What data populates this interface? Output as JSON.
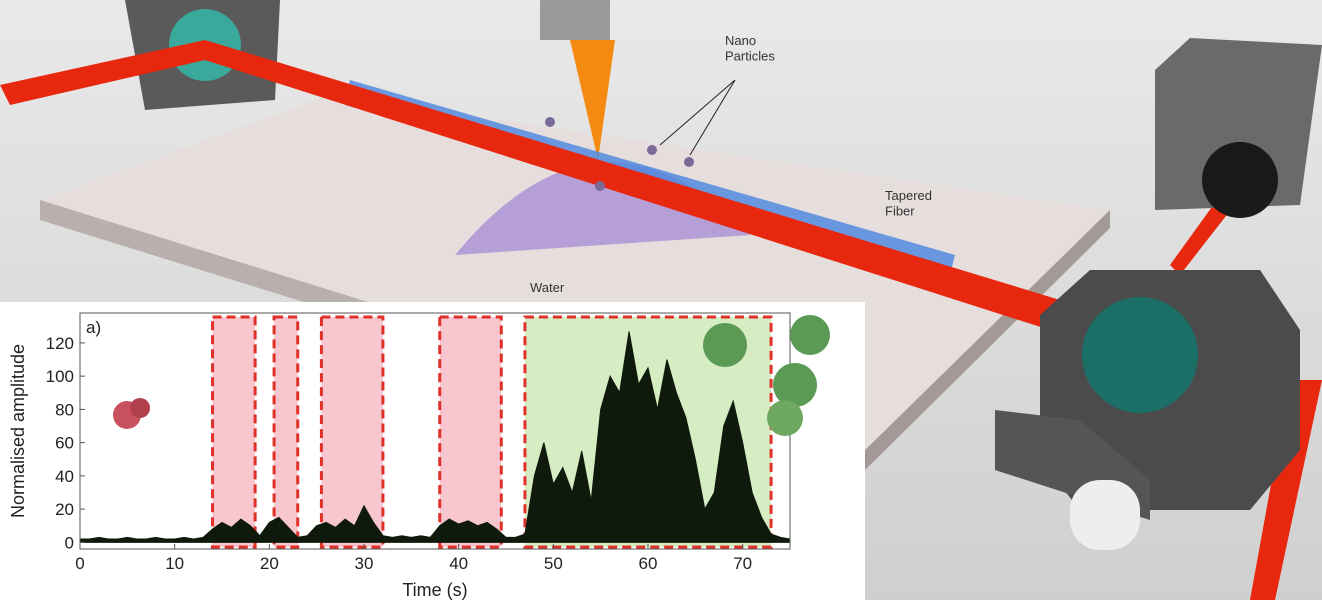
{
  "labels": {
    "nano": "Nano\nParticles",
    "fiber": "Tapered\nFiber",
    "water": "Water"
  },
  "chart_data": {
    "type": "area",
    "panel_label": "a)",
    "xlabel": "Time (s)",
    "ylabel": "Normalised amplitude",
    "xlim": [
      0,
      75
    ],
    "ylim": [
      -4,
      138
    ],
    "xticks": [
      0,
      10,
      20,
      30,
      40,
      50,
      60,
      70
    ],
    "yticks": [
      0,
      20,
      40,
      60,
      80,
      100,
      120
    ],
    "regions": [
      {
        "start": 14,
        "end": 18.5,
        "color": "#f7c6cf"
      },
      {
        "start": 20.5,
        "end": 23,
        "color": "#f7c6cf"
      },
      {
        "start": 25.5,
        "end": 32,
        "color": "#f7c6cf"
      },
      {
        "start": 38,
        "end": 44.5,
        "color": "#f7c6cf"
      },
      {
        "start": 47,
        "end": 73,
        "color": "#d6edc3"
      }
    ],
    "series": [
      {
        "color": "#0f1a0c",
        "x": [
          0,
          1,
          2,
          3,
          4,
          5,
          6,
          7,
          8,
          9,
          10,
          11,
          12,
          13,
          14,
          15,
          16,
          17,
          18,
          19,
          20,
          21,
          22,
          23,
          24,
          25,
          26,
          27,
          28,
          29,
          30,
          31,
          32,
          33,
          34,
          35,
          36,
          37,
          38,
          39,
          40,
          41,
          42,
          43,
          44,
          45,
          46,
          47,
          48,
          49,
          50,
          51,
          52,
          53,
          54,
          55,
          56,
          57,
          58,
          59,
          60,
          61,
          62,
          63,
          64,
          65,
          66,
          67,
          68,
          69,
          70,
          71,
          72,
          73,
          74,
          75
        ],
        "values": [
          2,
          2,
          3,
          2,
          2,
          3,
          2,
          2,
          3,
          2,
          2,
          3,
          2,
          3,
          8,
          12,
          9,
          14,
          10,
          4,
          12,
          15,
          9,
          3,
          4,
          10,
          12,
          9,
          14,
          10,
          22,
          12,
          4,
          3,
          4,
          3,
          4,
          3,
          10,
          14,
          11,
          13,
          10,
          12,
          8,
          3,
          3,
          5,
          40,
          60,
          35,
          45,
          30,
          55,
          25,
          80,
          100,
          90,
          127,
          95,
          105,
          80,
          110,
          90,
          75,
          50,
          20,
          30,
          70,
          85,
          60,
          30,
          15,
          5,
          3,
          2
        ]
      }
    ]
  }
}
